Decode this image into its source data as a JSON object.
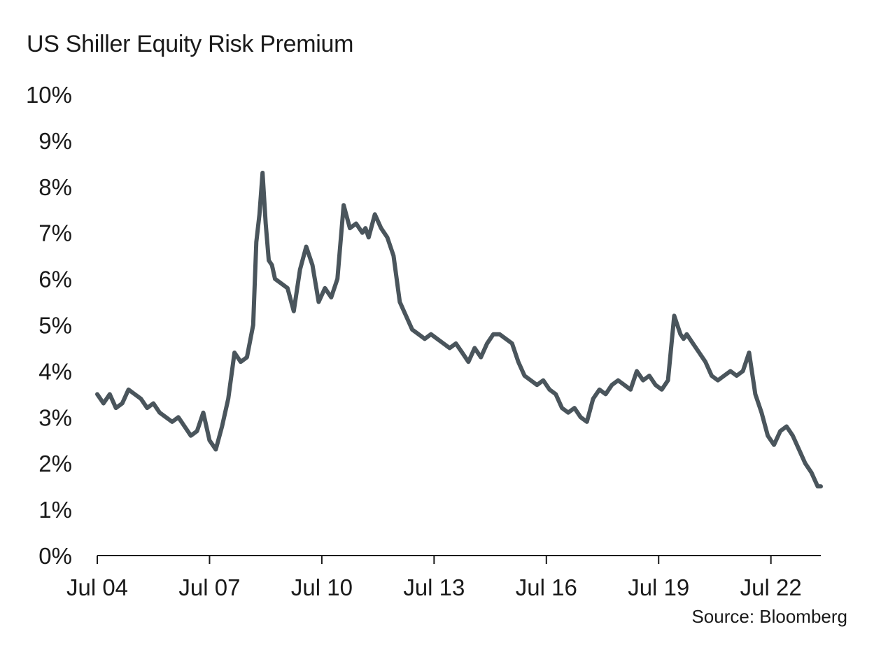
{
  "chart_data": {
    "type": "line",
    "title": "US Shiller Equity Risk Premium",
    "source": "Source: Bloomberg",
    "xlabel": "",
    "ylabel": "",
    "x_ticks": [
      "Jul 04",
      "Jul 07",
      "Jul 10",
      "Jul 13",
      "Jul 16",
      "Jul 19",
      "Jul 22"
    ],
    "y_ticks": [
      "0%",
      "1%",
      "2%",
      "3%",
      "4%",
      "5%",
      "6%",
      "7%",
      "8%",
      "9%",
      "10%"
    ],
    "ylim": [
      0,
      10
    ],
    "xlim": [
      "2004-07",
      "2023-11"
    ],
    "grid": false,
    "line_color": "#4a555c",
    "series": [
      {
        "name": "",
        "x": [
          "2004-07",
          "2004-09",
          "2004-11",
          "2005-01",
          "2005-03",
          "2005-05",
          "2005-07",
          "2005-09",
          "2005-11",
          "2006-01",
          "2006-03",
          "2006-05",
          "2006-07",
          "2006-09",
          "2006-11",
          "2007-01",
          "2007-03",
          "2007-05",
          "2007-07",
          "2007-09",
          "2007-11",
          "2008-01",
          "2008-03",
          "2008-05",
          "2008-07",
          "2008-09",
          "2008-10",
          "2008-11",
          "2008-12",
          "2009-01",
          "2009-02",
          "2009-03",
          "2009-04",
          "2009-06",
          "2009-08",
          "2009-10",
          "2009-12",
          "2010-02",
          "2010-04",
          "2010-06",
          "2010-08",
          "2010-10",
          "2010-12",
          "2011-02",
          "2011-04",
          "2011-06",
          "2011-08",
          "2011-09",
          "2011-10",
          "2011-12",
          "2012-02",
          "2012-04",
          "2012-06",
          "2012-08",
          "2012-10",
          "2012-12",
          "2013-02",
          "2013-04",
          "2013-06",
          "2013-08",
          "2013-10",
          "2013-12",
          "2014-02",
          "2014-04",
          "2014-06",
          "2014-08",
          "2014-10",
          "2014-12",
          "2015-02",
          "2015-04",
          "2015-06",
          "2015-08",
          "2015-10",
          "2015-12",
          "2016-02",
          "2016-04",
          "2016-06",
          "2016-08",
          "2016-10",
          "2016-12",
          "2017-02",
          "2017-04",
          "2017-06",
          "2017-08",
          "2017-10",
          "2017-12",
          "2018-02",
          "2018-04",
          "2018-06",
          "2018-08",
          "2018-10",
          "2018-12",
          "2019-02",
          "2019-04",
          "2019-06",
          "2019-08",
          "2019-10",
          "2019-12",
          "2020-02",
          "2020-03",
          "2020-04",
          "2020-06",
          "2020-08",
          "2020-10",
          "2020-12",
          "2021-02",
          "2021-04",
          "2021-06",
          "2021-08",
          "2021-10",
          "2021-12",
          "2022-02",
          "2022-04",
          "2022-06",
          "2022-08",
          "2022-10",
          "2022-12",
          "2023-02",
          "2023-04",
          "2023-06",
          "2023-08",
          "2023-10",
          "2023-11"
        ],
        "values": [
          3.5,
          3.3,
          3.5,
          3.2,
          3.3,
          3.6,
          3.5,
          3.4,
          3.2,
          3.3,
          3.1,
          3.0,
          2.9,
          3.0,
          2.8,
          2.6,
          2.7,
          3.1,
          2.5,
          2.3,
          2.8,
          3.4,
          4.4,
          4.2,
          4.3,
          5.0,
          6.8,
          7.4,
          8.3,
          7.2,
          6.4,
          6.3,
          6.0,
          5.9,
          5.8,
          5.3,
          6.2,
          6.7,
          6.3,
          5.5,
          5.8,
          5.6,
          6.0,
          7.6,
          7.1,
          7.2,
          7.0,
          7.1,
          6.9,
          7.4,
          7.1,
          6.9,
          6.5,
          5.5,
          5.2,
          4.9,
          4.8,
          4.7,
          4.8,
          4.7,
          4.6,
          4.5,
          4.6,
          4.4,
          4.2,
          4.5,
          4.3,
          4.6,
          4.8,
          4.8,
          4.7,
          4.6,
          4.2,
          3.9,
          3.8,
          3.7,
          3.8,
          3.6,
          3.5,
          3.2,
          3.1,
          3.2,
          3.0,
          2.9,
          3.4,
          3.6,
          3.5,
          3.7,
          3.8,
          3.7,
          3.6,
          4.0,
          3.8,
          3.9,
          3.7,
          3.6,
          3.8,
          5.2,
          4.8,
          4.7,
          4.8,
          4.6,
          4.4,
          4.2,
          3.9,
          3.8,
          3.9,
          4.0,
          3.9,
          4.0,
          4.4,
          3.5,
          3.1,
          2.6,
          2.4,
          2.7,
          2.8,
          2.6,
          2.3,
          2.0,
          1.8,
          1.5,
          1.5
        ]
      }
    ]
  }
}
